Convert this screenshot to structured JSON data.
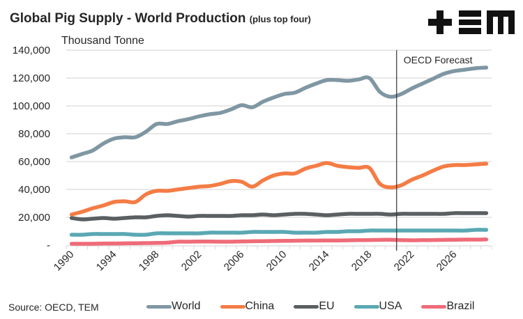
{
  "header": {
    "title": "Global Pig Supply - World Production",
    "title_suffix": "(plus top four)",
    "logo_text": "TEM",
    "unit_label": "Thousand Tonne"
  },
  "footer": {
    "source": "Source: OECD, TEM"
  },
  "chart_data": {
    "type": "line",
    "title": "Global Pig Supply - World Production (plus top four)",
    "xlabel": "",
    "ylabel": "Thousand Tonne",
    "ylim": [
      0,
      140000
    ],
    "yticks": [
      0,
      20000,
      40000,
      60000,
      80000,
      100000,
      120000,
      140000
    ],
    "ytick_labels": [
      "-",
      "20,000",
      "40,000",
      "60,000",
      "80,000",
      "100,000",
      "120,000",
      "140,000"
    ],
    "xtick_labels": [
      "1990",
      "1994",
      "1998",
      "2002",
      "2006",
      "2010",
      "2014",
      "2018",
      "2022",
      "2026"
    ],
    "grid": true,
    "legend_position": "bottom",
    "annotation": {
      "text": "OECD Forecast",
      "start_year": 2021
    },
    "x": [
      1990,
      1991,
      1992,
      1993,
      1994,
      1995,
      1996,
      1997,
      1998,
      1999,
      2000,
      2001,
      2002,
      2003,
      2004,
      2005,
      2006,
      2007,
      2008,
      2009,
      2010,
      2011,
      2012,
      2013,
      2014,
      2015,
      2016,
      2017,
      2018,
      2019,
      2020,
      2021,
      2022,
      2023,
      2024,
      2025,
      2026,
      2027,
      2028,
      2029
    ],
    "series": [
      {
        "name": "World",
        "color": "#7f97a3",
        "values": [
          63000,
          65500,
          68000,
          73000,
          76500,
          77500,
          77500,
          81500,
          87000,
          87000,
          89000,
          90500,
          92500,
          94000,
          95000,
          97500,
          100500,
          99000,
          103000,
          106000,
          108500,
          109500,
          113000,
          116000,
          118500,
          118500,
          118000,
          119000,
          120000,
          110000,
          106500,
          108500,
          112500,
          116000,
          119500,
          123000,
          125000,
          126000,
          127000,
          127500
        ]
      },
      {
        "name": "China",
        "color": "#f47c45",
        "values": [
          22000,
          24000,
          26500,
          28500,
          31000,
          31500,
          31000,
          36500,
          39000,
          39000,
          40000,
          41000,
          42000,
          42500,
          44000,
          46000,
          45500,
          42000,
          46500,
          50000,
          51500,
          51500,
          55000,
          57000,
          59000,
          57000,
          56000,
          55500,
          55500,
          44000,
          41500,
          43000,
          47000,
          50000,
          53500,
          56500,
          57500,
          57500,
          58000,
          58500
        ]
      },
      {
        "name": "EU",
        "color": "#5a5f62",
        "values": [
          19500,
          18500,
          19000,
          19500,
          19000,
          19500,
          20000,
          20000,
          21000,
          21500,
          21000,
          20500,
          21000,
          21000,
          21000,
          21000,
          21500,
          21500,
          22000,
          21500,
          22000,
          22500,
          22500,
          22000,
          21500,
          22000,
          22500,
          22500,
          22500,
          22500,
          22000,
          22500,
          22500,
          22500,
          22500,
          22500,
          23000,
          23000,
          23000,
          23000
        ]
      },
      {
        "name": "USA",
        "color": "#5aa8b3",
        "values": [
          7500,
          7500,
          8000,
          8000,
          8000,
          8000,
          7500,
          7500,
          8500,
          8500,
          8500,
          8500,
          8500,
          9000,
          9000,
          9000,
          9000,
          9500,
          9500,
          9500,
          9500,
          9000,
          9000,
          9000,
          9500,
          9500,
          10000,
          10000,
          10500,
          10500,
          10500,
          10500,
          10500,
          10500,
          10500,
          10500,
          10500,
          10500,
          11000,
          11000
        ]
      },
      {
        "name": "Brazil",
        "color": "#ef6b78",
        "values": [
          1000,
          1000,
          1000,
          1200,
          1200,
          1300,
          1400,
          1500,
          1600,
          1800,
          2500,
          2500,
          2600,
          2600,
          2500,
          2500,
          2700,
          2800,
          2900,
          3000,
          3100,
          3200,
          3300,
          3300,
          3400,
          3400,
          3500,
          3600,
          3700,
          3800,
          3900,
          3600,
          3500,
          3600,
          3700,
          3800,
          3900,
          4000,
          4000,
          4100
        ]
      }
    ]
  }
}
